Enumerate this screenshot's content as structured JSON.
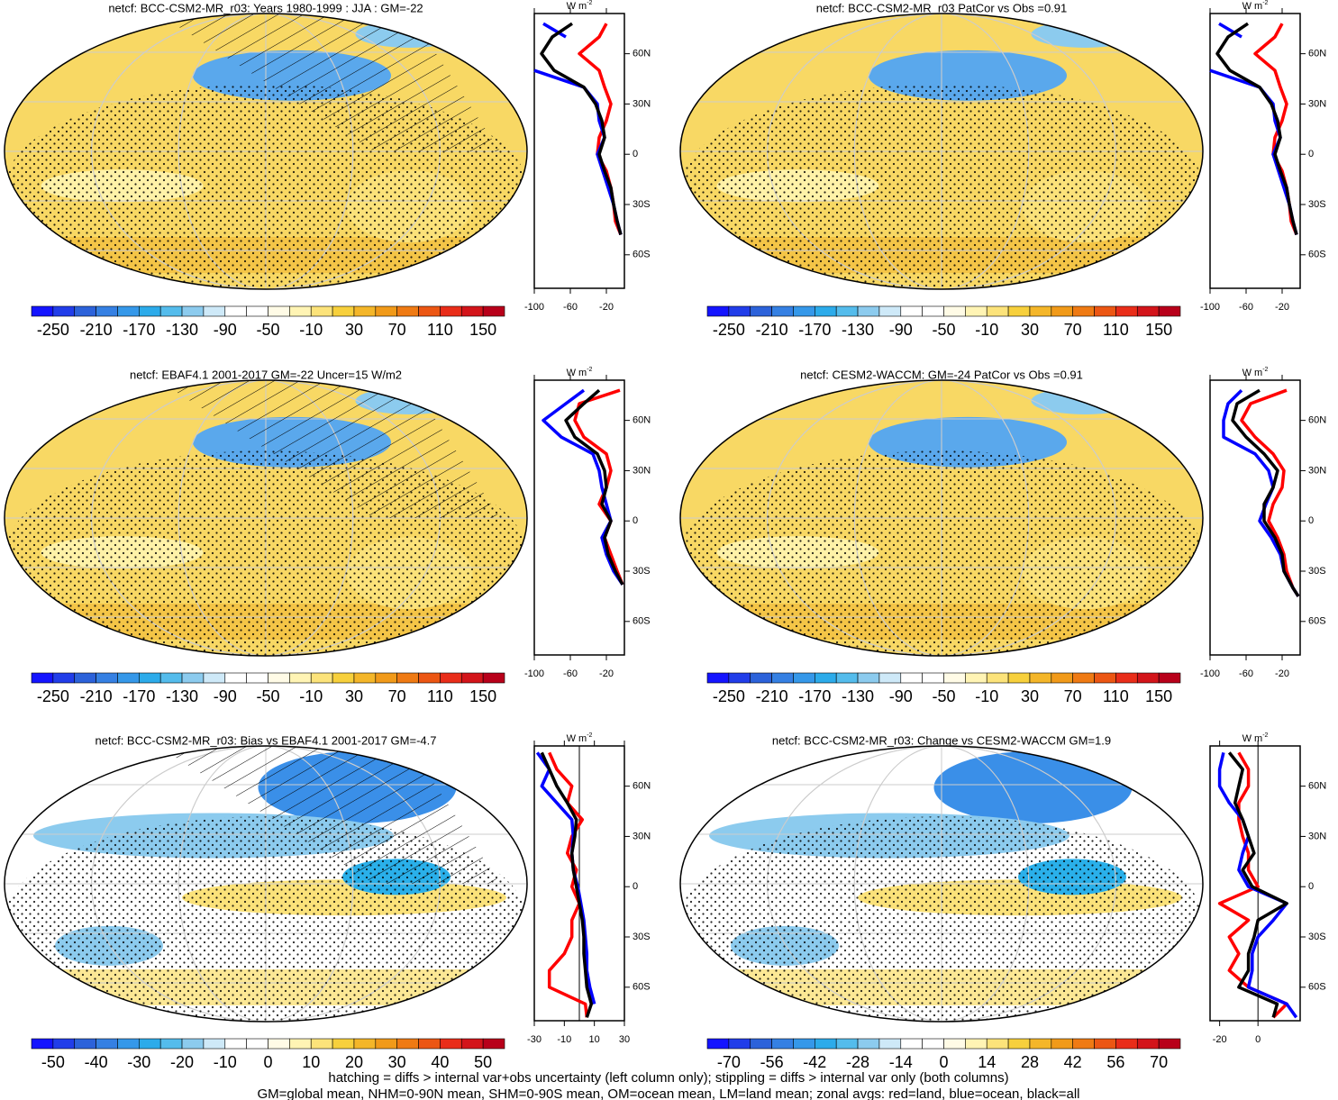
{
  "chart_data": [
    {
      "type": "line",
      "title": "netcf: BCC-CSM2-MR_r03: Years 1980-1999 : JJA : GM=-22",
      "unit": "W m",
      "unit_exp": "-2",
      "xlim": [
        -100,
        0
      ],
      "xticks": [
        -100,
        -60,
        -20
      ],
      "ylim": [
        -80,
        84
      ],
      "yticks": [
        {
          "value": 60,
          "label": "60N"
        },
        {
          "value": 30,
          "label": "30N"
        },
        0,
        {
          "value": -30,
          "label": "30S"
        },
        {
          "value": -60,
          "label": "60S"
        }
      ],
      "y": [
        78,
        70,
        60,
        50,
        40,
        30,
        20,
        10,
        0,
        -10,
        -20,
        -30,
        -40,
        -48
      ],
      "series": [
        {
          "color": "#ff0000",
          "values": [
            -20,
            -28,
            -50,
            -28,
            -22,
            -15,
            -20,
            -28,
            -30,
            -20,
            -15,
            -12,
            -10,
            -4
          ]
        },
        {
          "color": "#0000ff",
          "values": [
            -90,
            -65,
            null,
            -100,
            -45,
            -30,
            -28,
            -22,
            -30,
            -24,
            -18,
            -12,
            -8,
            -4
          ]
        },
        {
          "color": "#000000",
          "values": [
            -58,
            -80,
            -92,
            -78,
            -45,
            -32,
            -25,
            -22,
            -28,
            -22,
            -15,
            -12,
            -8,
            -4
          ]
        }
      ],
      "colorbar_labels": [
        -250,
        -210,
        -170,
        -130,
        -90,
        -50,
        -10,
        30,
        70,
        110,
        150
      ],
      "hatching": true
    },
    {
      "type": "line",
      "title": "netcf: BCC-CSM2-MR_r03 PatCor vs Obs =0.91",
      "unit": "W m",
      "unit_exp": "-2",
      "xlim": [
        -100,
        0
      ],
      "xticks": [
        -100,
        -60,
        -20
      ],
      "ylim": [
        -80,
        84
      ],
      "yticks": [
        {
          "value": 60,
          "label": "60N"
        },
        {
          "value": 30,
          "label": "30N"
        },
        0,
        {
          "value": -30,
          "label": "30S"
        },
        {
          "value": -60,
          "label": "60S"
        }
      ],
      "y": [
        78,
        70,
        60,
        50,
        40,
        30,
        20,
        10,
        0,
        -10,
        -20,
        -30,
        -40,
        -48
      ],
      "series": [
        {
          "color": "#ff0000",
          "values": [
            -20,
            -28,
            -50,
            -28,
            -22,
            -15,
            -20,
            -28,
            -30,
            -20,
            -15,
            -12,
            -10,
            -4
          ]
        },
        {
          "color": "#0000ff",
          "values": [
            -90,
            -65,
            null,
            -100,
            -45,
            -30,
            -28,
            -22,
            -30,
            -24,
            -18,
            -12,
            -8,
            -4
          ]
        },
        {
          "color": "#000000",
          "values": [
            -58,
            -80,
            -92,
            -78,
            -45,
            -32,
            -25,
            -22,
            -28,
            -22,
            -15,
            -12,
            -8,
            -4
          ]
        }
      ],
      "colorbar_labels": [
        -250,
        -210,
        -170,
        -130,
        -90,
        -50,
        -10,
        30,
        70,
        110,
        150
      ],
      "hatching": false
    },
    {
      "type": "line",
      "title": "netcf: EBAF4.1 2001-2017 GM=-22 Uncer=15 W/m2",
      "unit": "W m",
      "unit_exp": "-2",
      "xlim": [
        -100,
        0
      ],
      "xticks": [
        -100,
        -60,
        -20
      ],
      "ylim": [
        -80,
        84
      ],
      "yticks": [
        {
          "value": 60,
          "label": "60N"
        },
        {
          "value": 30,
          "label": "30N"
        },
        0,
        {
          "value": -30,
          "label": "30S"
        },
        {
          "value": -60,
          "label": "60S"
        }
      ],
      "y": [
        78,
        70,
        60,
        50,
        40,
        30,
        20,
        10,
        0,
        -10,
        -20,
        -30,
        -38
      ],
      "series": [
        {
          "color": "#ff0000",
          "values": [
            -5,
            -50,
            -55,
            -45,
            -20,
            -15,
            -20,
            -28,
            -15,
            -22,
            -15,
            -8,
            -2
          ]
        },
        {
          "color": "#0000ff",
          "values": [
            -45,
            -65,
            -90,
            -70,
            -35,
            -28,
            -25,
            -20,
            -15,
            -25,
            -20,
            -12,
            -2
          ]
        },
        {
          "color": "#000000",
          "values": [
            -28,
            -45,
            -65,
            -55,
            -30,
            -22,
            -20,
            -25,
            -15,
            -22,
            -18,
            -10,
            -2
          ]
        }
      ],
      "colorbar_labels": [
        -250,
        -210,
        -170,
        -130,
        -90,
        -50,
        -10,
        30,
        70,
        110,
        150
      ],
      "hatching": true
    },
    {
      "type": "line",
      "title": "netcf: CESM2-WACCM: GM=-24 PatCor vs Obs =0.91",
      "unit": "W m",
      "unit_exp": "-2",
      "xlim": [
        -100,
        0
      ],
      "xticks": [
        -100,
        -60,
        -20
      ],
      "ylim": [
        -80,
        84
      ],
      "yticks": [
        {
          "value": 60,
          "label": "60N"
        },
        {
          "value": 30,
          "label": "30N"
        },
        0,
        {
          "value": -30,
          "label": "30S"
        },
        {
          "value": -60,
          "label": "60S"
        }
      ],
      "y": [
        78,
        70,
        60,
        50,
        40,
        30,
        20,
        10,
        0,
        -10,
        -20,
        -30,
        -40,
        -45
      ],
      "series": [
        {
          "color": "#ff0000",
          "values": [
            -15,
            -55,
            -65,
            -50,
            -30,
            -18,
            -20,
            -30,
            -35,
            -25,
            -18,
            -15,
            -8,
            -2
          ]
        },
        {
          "color": "#0000ff",
          "values": [
            -65,
            -80,
            -85,
            -85,
            -50,
            -35,
            -30,
            -38,
            -45,
            -32,
            -22,
            -18,
            -8,
            -2
          ]
        },
        {
          "color": "#000000",
          "values": [
            -45,
            -70,
            -75,
            -60,
            -40,
            -25,
            -30,
            -40,
            -40,
            -28,
            -20,
            -18,
            -8,
            -2
          ]
        }
      ],
      "colorbar_labels": [
        -250,
        -210,
        -170,
        -130,
        -90,
        -50,
        -10,
        30,
        70,
        110,
        150
      ],
      "hatching": false
    },
    {
      "type": "line",
      "title": "netcf: BCC-CSM2-MR_r03: Bias vs EBAF4.1 2001-2017 GM=-4.7",
      "unit": "W m",
      "unit_exp": "-2",
      "xlim": [
        -30,
        30
      ],
      "xticks": [
        -30,
        -10,
        10,
        30
      ],
      "ylim": [
        -80,
        84
      ],
      "zero_line": true,
      "yticks": [
        {
          "value": 60,
          "label": "60N"
        },
        {
          "value": 30,
          "label": "30N"
        },
        0,
        {
          "value": -30,
          "label": "30S"
        },
        {
          "value": -60,
          "label": "60S"
        }
      ],
      "y": [
        80,
        70,
        60,
        50,
        40,
        30,
        20,
        10,
        0,
        -10,
        -20,
        -30,
        -40,
        -50,
        -60,
        -70,
        -78
      ],
      "series": [
        {
          "color": "#ff0000",
          "values": [
            -20,
            -15,
            -5,
            -8,
            2,
            -5,
            -8,
            -2,
            -5,
            0,
            -5,
            -5,
            -10,
            -20,
            -20,
            4,
            5
          ]
        },
        {
          "color": "#0000ff",
          "values": [
            -28,
            -20,
            -25,
            -15,
            -5,
            -4,
            -5,
            -4,
            -1,
            1,
            3,
            4,
            5,
            5,
            7,
            10,
            null
          ]
        },
        {
          "color": "#000000",
          "values": [
            -25,
            -20,
            -15,
            -8,
            -2,
            -3,
            -5,
            -4,
            -2,
            0,
            2,
            3,
            3,
            4,
            5,
            8,
            5
          ]
        }
      ],
      "colorbar_labels": [
        -50,
        -40,
        -30,
        -20,
        -10,
        0,
        10,
        20,
        30,
        40,
        50
      ],
      "hatching": true
    },
    {
      "type": "line",
      "title": "netcf: BCC-CSM2-MR_r03: Change vs CESM2-WACCM GM=1.9",
      "unit": "W m",
      "unit_exp": "-2",
      "xlim": [
        -25,
        22
      ],
      "xticks": [
        -20,
        0
      ],
      "ylim": [
        -80,
        84
      ],
      "zero_line": true,
      "yticks": [
        {
          "value": 60,
          "label": "60N"
        },
        {
          "value": 30,
          "label": "30N"
        },
        0,
        {
          "value": -30,
          "label": "30S"
        },
        {
          "value": -60,
          "label": "60S"
        }
      ],
      "y": [
        80,
        70,
        60,
        50,
        40,
        30,
        20,
        10,
        0,
        -10,
        -20,
        -30,
        -40,
        -50,
        -60,
        -70,
        -78
      ],
      "series": [
        {
          "color": "#ff0000",
          "values": [
            -10,
            -5,
            -5,
            -10,
            -10,
            -8,
            -5,
            -5,
            0,
            -20,
            -5,
            -15,
            -10,
            -15,
            -5,
            15,
            8
          ]
        },
        {
          "color": "#0000ff",
          "values": [
            -18,
            -20,
            -20,
            -15,
            -8,
            -5,
            -8,
            -10,
            -5,
            15,
            8,
            0,
            -3,
            -3,
            -5,
            15,
            20
          ]
        },
        {
          "color": "#000000",
          "values": [
            -15,
            -8,
            -10,
            -12,
            -8,
            -5,
            -2,
            -8,
            -3,
            15,
            0,
            -2,
            -5,
            -5,
            -10,
            10,
            8
          ]
        }
      ],
      "colorbar_labels": [
        -70,
        -56,
        -42,
        -28,
        -14,
        0,
        14,
        28,
        42,
        56,
        70
      ],
      "hatching": false
    }
  ],
  "colormap": [
    "#1414ff",
    "#2a5bd8",
    "#3a8fe8",
    "#2ab0ea",
    "#8ccbee",
    "#ffffff",
    "#ffffff",
    "#fff2a8",
    "#f7d03c",
    "#f2a21a",
    "#ee6a10",
    "#e8231a",
    "#b8001a"
  ],
  "footer": [
    "hatching = diffs > internal var+obs uncertainty (left column only); stippling = diffs > internal var only (both columns)",
    "GM=global mean, NHM=0-90N mean, SHM=0-90S mean, OM=ocean mean, LM=land mean; zonal avgs: red=land, blue=ocean, black=all"
  ]
}
